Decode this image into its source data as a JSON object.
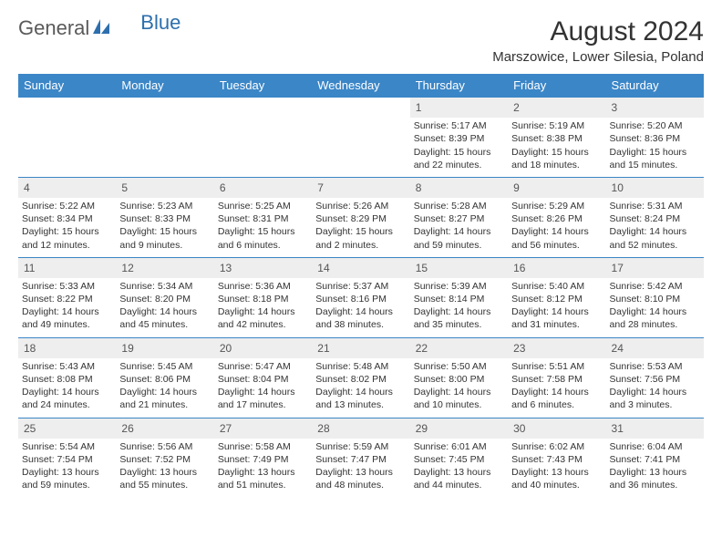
{
  "logo": {
    "word1": "General",
    "word2": "Blue"
  },
  "title": "August 2024",
  "location": "Marszowice, Lower Silesia, Poland",
  "colors": {
    "header_bg": "#3b86c7",
    "header_text": "#ffffff",
    "daynum_bg": "#eeeeee",
    "border": "#3b86c7",
    "text": "#333333",
    "logo_gray": "#5a5a5a",
    "logo_blue": "#2d6fad"
  },
  "dayHeaders": [
    "Sunday",
    "Monday",
    "Tuesday",
    "Wednesday",
    "Thursday",
    "Friday",
    "Saturday"
  ],
  "weeks": [
    [
      null,
      null,
      null,
      null,
      {
        "n": "1",
        "sr": "5:17 AM",
        "ss": "8:39 PM",
        "dl": "15 hours and 22 minutes."
      },
      {
        "n": "2",
        "sr": "5:19 AM",
        "ss": "8:38 PM",
        "dl": "15 hours and 18 minutes."
      },
      {
        "n": "3",
        "sr": "5:20 AM",
        "ss": "8:36 PM",
        "dl": "15 hours and 15 minutes."
      }
    ],
    [
      {
        "n": "4",
        "sr": "5:22 AM",
        "ss": "8:34 PM",
        "dl": "15 hours and 12 minutes."
      },
      {
        "n": "5",
        "sr": "5:23 AM",
        "ss": "8:33 PM",
        "dl": "15 hours and 9 minutes."
      },
      {
        "n": "6",
        "sr": "5:25 AM",
        "ss": "8:31 PM",
        "dl": "15 hours and 6 minutes."
      },
      {
        "n": "7",
        "sr": "5:26 AM",
        "ss": "8:29 PM",
        "dl": "15 hours and 2 minutes."
      },
      {
        "n": "8",
        "sr": "5:28 AM",
        "ss": "8:27 PM",
        "dl": "14 hours and 59 minutes."
      },
      {
        "n": "9",
        "sr": "5:29 AM",
        "ss": "8:26 PM",
        "dl": "14 hours and 56 minutes."
      },
      {
        "n": "10",
        "sr": "5:31 AM",
        "ss": "8:24 PM",
        "dl": "14 hours and 52 minutes."
      }
    ],
    [
      {
        "n": "11",
        "sr": "5:33 AM",
        "ss": "8:22 PM",
        "dl": "14 hours and 49 minutes."
      },
      {
        "n": "12",
        "sr": "5:34 AM",
        "ss": "8:20 PM",
        "dl": "14 hours and 45 minutes."
      },
      {
        "n": "13",
        "sr": "5:36 AM",
        "ss": "8:18 PM",
        "dl": "14 hours and 42 minutes."
      },
      {
        "n": "14",
        "sr": "5:37 AM",
        "ss": "8:16 PM",
        "dl": "14 hours and 38 minutes."
      },
      {
        "n": "15",
        "sr": "5:39 AM",
        "ss": "8:14 PM",
        "dl": "14 hours and 35 minutes."
      },
      {
        "n": "16",
        "sr": "5:40 AM",
        "ss": "8:12 PM",
        "dl": "14 hours and 31 minutes."
      },
      {
        "n": "17",
        "sr": "5:42 AM",
        "ss": "8:10 PM",
        "dl": "14 hours and 28 minutes."
      }
    ],
    [
      {
        "n": "18",
        "sr": "5:43 AM",
        "ss": "8:08 PM",
        "dl": "14 hours and 24 minutes."
      },
      {
        "n": "19",
        "sr": "5:45 AM",
        "ss": "8:06 PM",
        "dl": "14 hours and 21 minutes."
      },
      {
        "n": "20",
        "sr": "5:47 AM",
        "ss": "8:04 PM",
        "dl": "14 hours and 17 minutes."
      },
      {
        "n": "21",
        "sr": "5:48 AM",
        "ss": "8:02 PM",
        "dl": "14 hours and 13 minutes."
      },
      {
        "n": "22",
        "sr": "5:50 AM",
        "ss": "8:00 PM",
        "dl": "14 hours and 10 minutes."
      },
      {
        "n": "23",
        "sr": "5:51 AM",
        "ss": "7:58 PM",
        "dl": "14 hours and 6 minutes."
      },
      {
        "n": "24",
        "sr": "5:53 AM",
        "ss": "7:56 PM",
        "dl": "14 hours and 3 minutes."
      }
    ],
    [
      {
        "n": "25",
        "sr": "5:54 AM",
        "ss": "7:54 PM",
        "dl": "13 hours and 59 minutes."
      },
      {
        "n": "26",
        "sr": "5:56 AM",
        "ss": "7:52 PM",
        "dl": "13 hours and 55 minutes."
      },
      {
        "n": "27",
        "sr": "5:58 AM",
        "ss": "7:49 PM",
        "dl": "13 hours and 51 minutes."
      },
      {
        "n": "28",
        "sr": "5:59 AM",
        "ss": "7:47 PM",
        "dl": "13 hours and 48 minutes."
      },
      {
        "n": "29",
        "sr": "6:01 AM",
        "ss": "7:45 PM",
        "dl": "13 hours and 44 minutes."
      },
      {
        "n": "30",
        "sr": "6:02 AM",
        "ss": "7:43 PM",
        "dl": "13 hours and 40 minutes."
      },
      {
        "n": "31",
        "sr": "6:04 AM",
        "ss": "7:41 PM",
        "dl": "13 hours and 36 minutes."
      }
    ]
  ],
  "labels": {
    "sunrise": "Sunrise:",
    "sunset": "Sunset:",
    "daylight": "Daylight:"
  }
}
